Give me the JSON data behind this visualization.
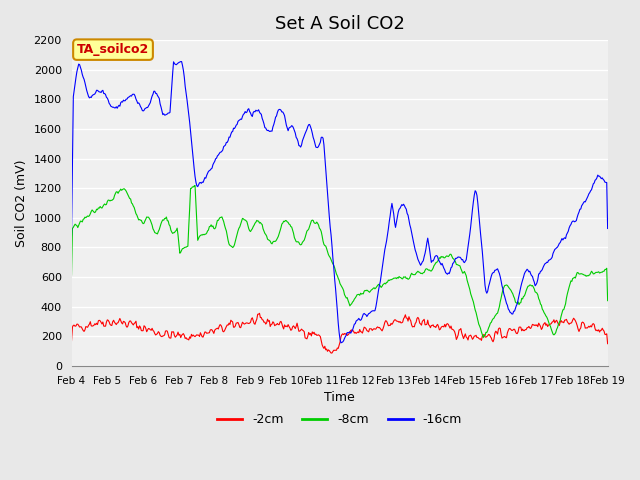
{
  "title": "Set A Soil CO2",
  "xlabel": "Time",
  "ylabel": "Soil CO2 (mV)",
  "ylim": [
    0,
    2200
  ],
  "yticks": [
    0,
    200,
    400,
    600,
    800,
    1000,
    1200,
    1400,
    1600,
    1800,
    2000,
    2200
  ],
  "xtick_labels": [
    "Feb 4",
    "Feb 5",
    "Feb 6",
    "Feb 7",
    "Feb 8",
    "Feb 9",
    "Feb 10",
    "Feb 11",
    "Feb 12",
    "Feb 13",
    "Feb 14",
    "Feb 15",
    "Feb 16",
    "Feb 17",
    "Feb 18",
    "Feb 19"
  ],
  "legend_labels": [
    "-2cm",
    "-8cm",
    "-16cm"
  ],
  "legend_colors": [
    "#ff0000",
    "#00cc00",
    "#0000ff"
  ],
  "line_colors": [
    "#ff0000",
    "#00cc00",
    "#0000ff"
  ],
  "annotation_text": "TA_soilco2",
  "annotation_bg": "#ffff99",
  "annotation_border": "#cc8800",
  "bg_color": "#e8e8e8",
  "plot_bg": "#f0f0f0",
  "grid_color": "#ffffff",
  "title_fontsize": 13
}
